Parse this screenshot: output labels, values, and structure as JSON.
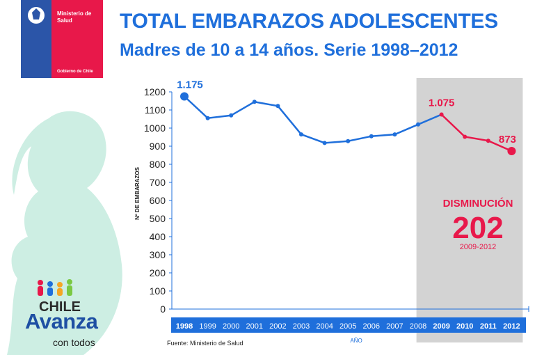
{
  "logo": {
    "line1": "Ministerio de",
    "line2": "Salud",
    "line3": "Gobierno de Chile"
  },
  "title": "TOTAL EMBARAZOS ADOLESCENTES",
  "subtitle": "Madres de 10 a 14 años. Serie 1998–2012",
  "brand": {
    "chile": "CHILE",
    "avanza": "Avanza",
    "con_todos": "con todos"
  },
  "source": "Fuente: Ministerio de Salud",
  "colors": {
    "blue": "#1f6fdb",
    "red": "#e8184a",
    "band": "#d3d3d3",
    "axis_bar": "#1f6fdb"
  },
  "chart_data": {
    "type": "line",
    "title": "TOTAL EMBARAZOS ADOLESCENTES",
    "subtitle": "Madres de 10 a 14 años. Serie 1998–2012",
    "xlabel": "AÑO",
    "ylabel": "Nº DE EMBARAZOS",
    "ylim": [
      0,
      1200
    ],
    "yticks": [
      0,
      100,
      200,
      300,
      400,
      500,
      600,
      700,
      800,
      900,
      1000,
      1100,
      1200
    ],
    "categories": [
      "1998",
      "1999",
      "2000",
      "2001",
      "2002",
      "2003",
      "2004",
      "2005",
      "2006",
      "2007",
      "2008",
      "2009",
      "2010",
      "2011",
      "2012"
    ],
    "values": [
      1175,
      1055,
      1070,
      1145,
      1122,
      965,
      918,
      928,
      955,
      965,
      1020,
      1075,
      952,
      930,
      873
    ],
    "highlight_from": "2009",
    "annotations": [
      {
        "category": "1998",
        "text": "1.175",
        "color": "blue"
      },
      {
        "category": "2009",
        "text": "1.075",
        "color": "red"
      },
      {
        "category": "2012",
        "text": "873",
        "color": "red"
      }
    ],
    "callout": {
      "label": "DISMINUCIÓN",
      "value": "202",
      "period": "2009-2012"
    },
    "grid": false
  }
}
